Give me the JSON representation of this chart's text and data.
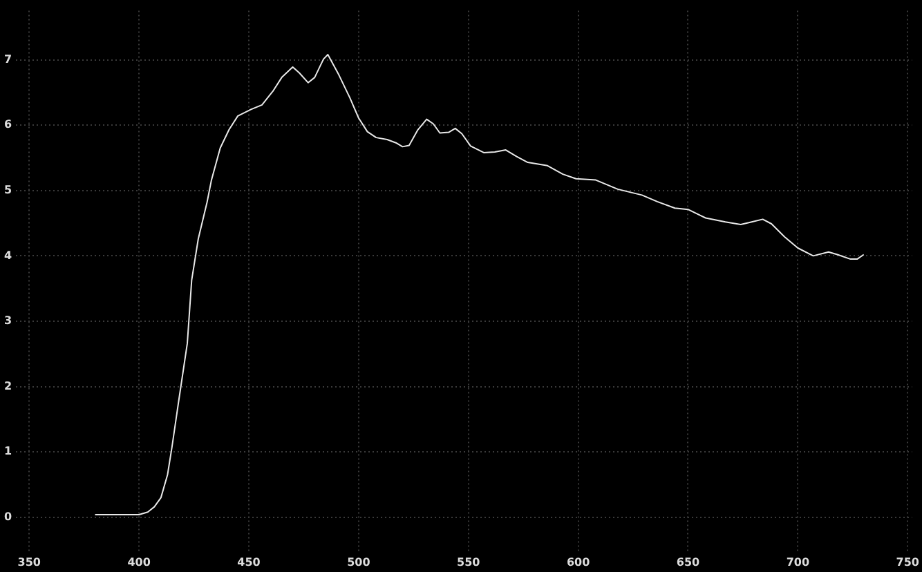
{
  "chart_data": {
    "type": "line",
    "x": [
      380,
      400,
      404,
      407,
      410,
      413,
      415,
      418,
      422,
      424,
      427,
      431,
      433,
      437,
      441,
      445,
      451,
      456,
      461,
      465,
      470,
      473,
      477,
      480,
      484,
      486,
      491,
      496,
      500,
      504,
      508,
      513,
      517,
      520,
      523,
      527,
      531,
      534,
      537,
      541,
      544,
      547,
      551,
      557,
      562,
      567,
      572,
      577,
      586,
      593,
      599,
      608,
      618,
      629,
      636,
      644,
      650,
      658,
      667,
      674,
      679,
      684,
      688,
      694,
      700,
      707,
      714,
      718,
      724,
      727,
      730
    ],
    "series": [
      {
        "color": "#e8e8e8",
        "values": [
          0.04,
          0.04,
          0.08,
          0.16,
          0.3,
          0.65,
          1.07,
          1.76,
          2.66,
          3.63,
          4.26,
          4.82,
          5.16,
          5.65,
          5.93,
          6.14,
          6.24,
          6.31,
          6.52,
          6.73,
          6.89,
          6.8,
          6.65,
          6.73,
          7.01,
          7.08,
          6.77,
          6.42,
          6.11,
          5.9,
          5.81,
          5.78,
          5.73,
          5.67,
          5.69,
          5.93,
          6.09,
          6.02,
          5.88,
          5.89,
          5.95,
          5.87,
          5.68,
          5.58,
          5.59,
          5.62,
          5.52,
          5.43,
          5.38,
          5.25,
          5.18,
          5.16,
          5.02,
          4.93,
          4.83,
          4.73,
          4.71,
          4.58,
          4.52,
          4.48,
          4.52,
          4.56,
          4.49,
          4.29,
          4.12,
          4.0,
          4.06,
          4.02,
          3.95,
          3.95,
          4.02
        ]
      }
    ],
    "xlim": [
      344,
      752
    ],
    "xticks": [
      350,
      400,
      450,
      500,
      550,
      600,
      650,
      700,
      750
    ],
    "ylim": [
      -0.55,
      7.75
    ],
    "yticks": [
      0,
      1,
      2,
      3,
      4,
      5,
      6,
      7
    ],
    "grid": true,
    "legend": false,
    "marker": "none",
    "line_style": "solid"
  }
}
